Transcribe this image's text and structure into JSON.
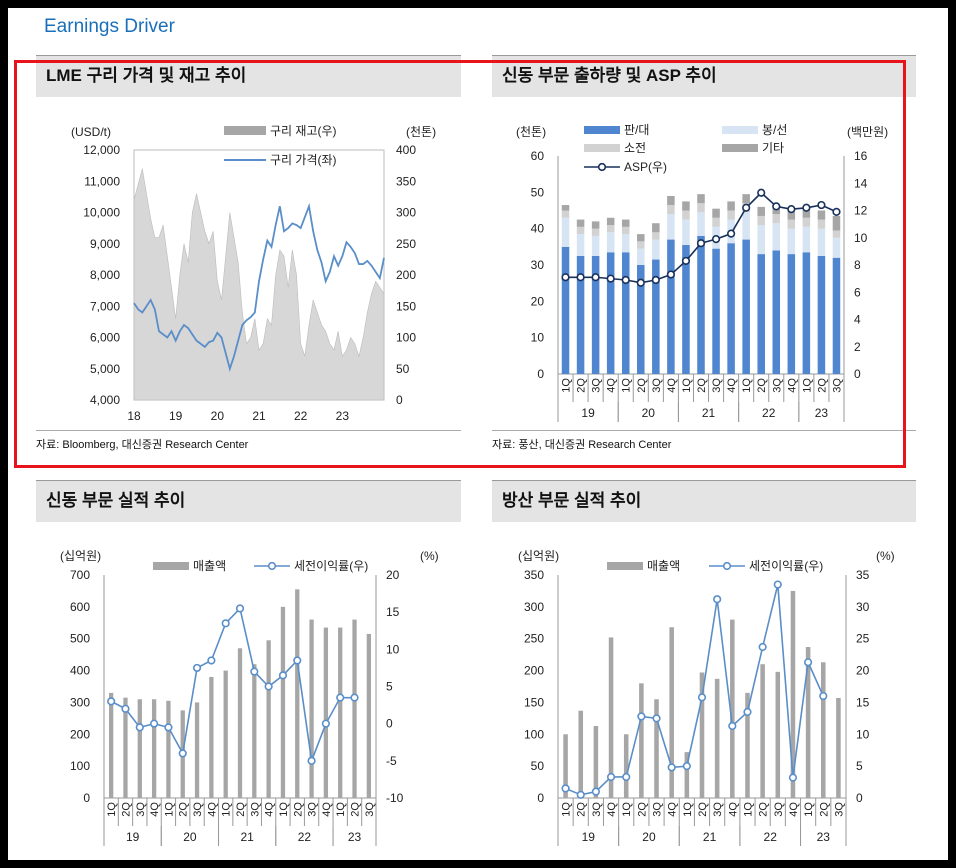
{
  "header": "Earnings Driver",
  "colors": {
    "accent": "#1a6fb8",
    "bar_gray": "#a6a6a6",
    "line_blue": "#5a8ec8",
    "sales_blue": "#4f86cf",
    "light_blue": "#d6e4f4",
    "light_gray": "#d2d2d2",
    "asp_navy": "#18305a",
    "highlight_red": "#e8141c"
  },
  "panels": [
    {
      "title": "LME 구리 가격 및 재고 추이",
      "source": "자료: Bloomberg, 대신증권 Research Center"
    },
    {
      "title": "신동 부문 출하량 및 ASP 추이",
      "source": "자료: 풍산, 대신증권 Research Center"
    },
    {
      "title": "신동 부문 실적 추이",
      "source": ""
    },
    {
      "title": "방산 부문 실적 추이",
      "source": ""
    }
  ],
  "chart_data": [
    {
      "type": "area",
      "left_unit": "(USD/t)",
      "right_unit": "(천톤)",
      "y_left": {
        "min": 4000,
        "max": 12000,
        "ticks": [
          4000,
          5000,
          6000,
          7000,
          8000,
          9000,
          10000,
          11000,
          12000
        ],
        "tick_labels": [
          "4,000",
          "5,000",
          "6,000",
          "7,000",
          "8,000",
          "9,000",
          "10,000",
          "11,000",
          "12,000"
        ]
      },
      "y_right": {
        "min": 0,
        "max": 400,
        "ticks": [
          0,
          50,
          100,
          150,
          200,
          250,
          300,
          350,
          400
        ]
      },
      "x_ticks": [
        "18",
        "19",
        "20",
        "21",
        "22",
        "23"
      ],
      "x_range": [
        2018.0,
        2024.0
      ],
      "series": [
        {
          "name": "구리 재고(우)",
          "axis": "right",
          "x": [
            2018.0,
            2018.1,
            2018.2,
            2018.3,
            2018.4,
            2018.5,
            2018.6,
            2018.7,
            2018.8,
            2018.9,
            2019.0,
            2019.1,
            2019.2,
            2019.3,
            2019.4,
            2019.5,
            2019.6,
            2019.7,
            2019.8,
            2019.9,
            2020.0,
            2020.1,
            2020.2,
            2020.3,
            2020.4,
            2020.5,
            2020.6,
            2020.7,
            2020.8,
            2020.9,
            2021.0,
            2021.1,
            2021.2,
            2021.3,
            2021.4,
            2021.5,
            2021.6,
            2021.7,
            2021.8,
            2021.9,
            2022.0,
            2022.1,
            2022.2,
            2022.3,
            2022.4,
            2022.5,
            2022.6,
            2022.7,
            2022.8,
            2022.9,
            2023.0,
            2023.1,
            2023.2,
            2023.3,
            2023.4,
            2023.5,
            2023.6,
            2023.7,
            2023.8,
            2023.9,
            2024.0
          ],
          "values": [
            320,
            345,
            370,
            330,
            290,
            260,
            260,
            280,
            230,
            180,
            130,
            200,
            250,
            220,
            300,
            330,
            300,
            270,
            250,
            270,
            190,
            160,
            230,
            300,
            260,
            220,
            140,
            90,
            100,
            130,
            80,
            90,
            130,
            120,
            200,
            240,
            230,
            180,
            240,
            200,
            90,
            70,
            120,
            160,
            140,
            120,
            110,
            90,
            80,
            110,
            70,
            80,
            100,
            90,
            70,
            100,
            140,
            170,
            190,
            180,
            170
          ]
        },
        {
          "name": "구리 가격(좌)",
          "axis": "left",
          "x": [
            2018.0,
            2018.1,
            2018.2,
            2018.3,
            2018.4,
            2018.5,
            2018.6,
            2018.7,
            2018.8,
            2018.9,
            2019.0,
            2019.1,
            2019.2,
            2019.3,
            2019.4,
            2019.5,
            2019.6,
            2019.7,
            2019.8,
            2019.9,
            2020.0,
            2020.1,
            2020.2,
            2020.3,
            2020.4,
            2020.5,
            2020.6,
            2020.7,
            2020.8,
            2020.9,
            2021.0,
            2021.1,
            2021.2,
            2021.3,
            2021.4,
            2021.5,
            2021.6,
            2021.7,
            2021.8,
            2021.9,
            2022.0,
            2022.1,
            2022.2,
            2022.3,
            2022.4,
            2022.5,
            2022.6,
            2022.7,
            2022.8,
            2022.9,
            2023.0,
            2023.1,
            2023.2,
            2023.3,
            2023.4,
            2023.5,
            2023.6,
            2023.7,
            2023.8,
            2023.9,
            2024.0
          ],
          "values": [
            7100,
            6900,
            6800,
            7000,
            7200,
            6900,
            6200,
            6100,
            6000,
            6200,
            5900,
            6200,
            6400,
            6300,
            6100,
            5900,
            5800,
            5700,
            5850,
            5900,
            6150,
            6000,
            5500,
            5000,
            5400,
            5900,
            6400,
            6550,
            6650,
            6800,
            7800,
            8500,
            9100,
            8900,
            9600,
            10200,
            9400,
            9500,
            9650,
            9600,
            9500,
            9850,
            10200,
            9400,
            8800,
            8400,
            7800,
            8100,
            8600,
            8300,
            8600,
            9050,
            8900,
            8700,
            8350,
            8350,
            8450,
            8300,
            8100,
            7900,
            8550
          ]
        }
      ]
    },
    {
      "type": "bar",
      "left_unit": "(천톤)",
      "right_unit": "(백만원)",
      "y_left": {
        "min": 0,
        "max": 60,
        "ticks": [
          0,
          10,
          20,
          30,
          40,
          50,
          60
        ]
      },
      "y_right": {
        "min": 0,
        "max": 16,
        "ticks": [
          0,
          2,
          4,
          6,
          8,
          10,
          12,
          14,
          16
        ]
      },
      "categories": [
        "1Q",
        "2Q",
        "3Q",
        "4Q",
        "1Q",
        "2Q",
        "3Q",
        "4Q",
        "1Q",
        "2Q",
        "3Q",
        "4Q",
        "1Q",
        "2Q",
        "3Q",
        "4Q",
        "1Q",
        "2Q",
        "3Q"
      ],
      "year_groups": [
        {
          "label": "19",
          "start": 0,
          "count": 4
        },
        {
          "label": "20",
          "start": 4,
          "count": 4
        },
        {
          "label": "21",
          "start": 8,
          "count": 4
        },
        {
          "label": "22",
          "start": 12,
          "count": 4
        },
        {
          "label": "23",
          "start": 16,
          "count": 3
        }
      ],
      "series": [
        {
          "name": "판/대",
          "type": "bar",
          "values": [
            35,
            32.5,
            32.5,
            33.5,
            33.5,
            30,
            31.5,
            37,
            35.5,
            38,
            34.5,
            36,
            37,
            33,
            34,
            33,
            33.5,
            32.5,
            32
          ]
        },
        {
          "name": "봉/선",
          "type": "bar",
          "values": [
            8,
            6,
            5.5,
            5.5,
            5,
            4.5,
            5.5,
            7,
            7,
            6.5,
            6,
            6.5,
            7.5,
            8,
            7.5,
            7,
            7,
            7.5,
            5.5
          ]
        },
        {
          "name": "소전",
          "type": "bar",
          "values": [
            2,
            2,
            2,
            2,
            2,
            2,
            2,
            2.5,
            2.5,
            2.5,
            2.5,
            2.5,
            2.5,
            2.5,
            2.5,
            2.5,
            2.5,
            2.5,
            2
          ]
        },
        {
          "name": "기타",
          "type": "bar",
          "values": [
            1.5,
            2,
            2,
            2,
            2,
            2,
            2.5,
            2.5,
            2.5,
            2.5,
            2.5,
            2.5,
            2.5,
            2.5,
            2.5,
            2.5,
            2.5,
            2.5,
            4
          ]
        },
        {
          "name": "ASP(우)",
          "type": "line",
          "axis": "right",
          "values": [
            7.1,
            7.1,
            7.1,
            7.0,
            6.9,
            6.7,
            6.9,
            7.3,
            8.3,
            9.6,
            9.9,
            10.3,
            12.2,
            13.3,
            12.3,
            12.1,
            12.2,
            12.4,
            11.9
          ]
        }
      ]
    },
    {
      "type": "bar",
      "left_unit": "(십억원)",
      "right_unit": "(%)",
      "y_left": {
        "min": 0,
        "max": 700,
        "ticks": [
          0,
          100,
          200,
          300,
          400,
          500,
          600,
          700
        ]
      },
      "y_right": {
        "min": -10,
        "max": 20,
        "ticks": [
          -10,
          -5,
          0,
          5,
          10,
          15,
          20
        ]
      },
      "categories": [
        "1Q",
        "2Q",
        "3Q",
        "4Q",
        "1Q",
        "2Q",
        "3Q",
        "4Q",
        "1Q",
        "2Q",
        "3Q",
        "4Q",
        "1Q",
        "2Q",
        "3Q",
        "4Q",
        "1Q",
        "2Q",
        "3Q"
      ],
      "year_groups": [
        {
          "label": "19",
          "start": 0,
          "count": 4
        },
        {
          "label": "20",
          "start": 4,
          "count": 4
        },
        {
          "label": "21",
          "start": 8,
          "count": 4
        },
        {
          "label": "22",
          "start": 12,
          "count": 4
        },
        {
          "label": "23",
          "start": 16,
          "count": 3
        }
      ],
      "series": [
        {
          "name": "매출액",
          "type": "bar",
          "values": [
            330,
            315,
            310,
            310,
            305,
            275,
            300,
            380,
            400,
            470,
            420,
            495,
            600,
            655,
            560,
            535,
            535,
            560,
            515
          ]
        },
        {
          "name": "세전이익률(우)",
          "type": "line",
          "axis": "right",
          "values": [
            3,
            2,
            -0.5,
            0,
            -0.5,
            -4,
            7.5,
            8.5,
            13.5,
            15.5,
            7,
            5,
            6.5,
            8.5,
            -5,
            0,
            3.5,
            3.5,
            null
          ]
        }
      ]
    },
    {
      "type": "bar",
      "left_unit": "(십억원)",
      "right_unit": "(%)",
      "y_left": {
        "min": 0,
        "max": 350,
        "ticks": [
          0,
          50,
          100,
          150,
          200,
          250,
          300,
          350
        ]
      },
      "y_right": {
        "min": 0,
        "max": 35,
        "ticks": [
          0,
          5,
          10,
          15,
          20,
          25,
          30,
          35
        ]
      },
      "categories": [
        "1Q",
        "2Q",
        "3Q",
        "4Q",
        "1Q",
        "2Q",
        "3Q",
        "4Q",
        "1Q",
        "2Q",
        "3Q",
        "4Q",
        "1Q",
        "2Q",
        "3Q",
        "4Q",
        "1Q",
        "2Q",
        "3Q"
      ],
      "year_groups": [
        {
          "label": "19",
          "start": 0,
          "count": 4
        },
        {
          "label": "20",
          "start": 4,
          "count": 4
        },
        {
          "label": "21",
          "start": 8,
          "count": 4
        },
        {
          "label": "22",
          "start": 12,
          "count": 4
        },
        {
          "label": "23",
          "start": 16,
          "count": 3
        }
      ],
      "series": [
        {
          "name": "매출액",
          "type": "bar",
          "values": [
            100,
            137,
            113,
            252,
            100,
            180,
            155,
            268,
            72,
            197,
            187,
            280,
            165,
            210,
            198,
            325,
            237,
            213,
            157
          ]
        },
        {
          "name": "세전이익률(우)",
          "type": "line",
          "axis": "right",
          "values": [
            1.5,
            0.5,
            1,
            3.3,
            3.3,
            12.8,
            12.5,
            4.8,
            5,
            15.8,
            31.2,
            11.3,
            13.5,
            23.7,
            33.5,
            3.2,
            21.3,
            16,
            null
          ]
        }
      ]
    }
  ]
}
